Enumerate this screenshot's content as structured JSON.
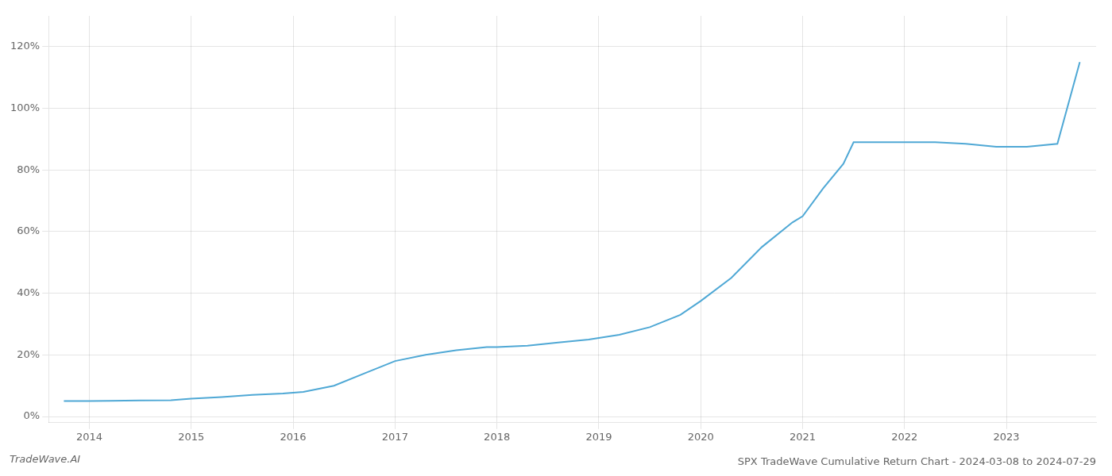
{
  "chart_data": {
    "type": "line",
    "title": "SPX TradeWave Cumulative Return Chart - 2024-03-08 to 2024-07-29",
    "annotations": [
      "TradeWave.AI"
    ],
    "color": "#4fa8d5",
    "grid": true,
    "x": [
      2013.75,
      2014.0,
      2014.2,
      2014.5,
      2014.8,
      2015.0,
      2015.3,
      2015.6,
      2015.9,
      2016.1,
      2016.4,
      2016.7,
      2017.0,
      2017.3,
      2017.6,
      2017.9,
      2018.0,
      2018.3,
      2018.6,
      2018.9,
      2019.0,
      2019.2,
      2019.5,
      2019.8,
      2020.0,
      2020.3,
      2020.6,
      2020.9,
      2021.0,
      2021.2,
      2021.4,
      2021.5,
      2021.8,
      2022.0,
      2022.3,
      2022.6,
      2022.9,
      2023.0,
      2023.2,
      2023.5,
      2023.72
    ],
    "values": [
      5.0,
      5.0,
      5.1,
      5.2,
      5.3,
      5.8,
      6.3,
      7.0,
      7.5,
      8.0,
      10.0,
      14.0,
      18.0,
      20.0,
      21.5,
      22.5,
      22.5,
      23.0,
      24.0,
      25.0,
      25.5,
      26.5,
      29.0,
      33.0,
      37.5,
      45.0,
      55.0,
      63.0,
      65.0,
      74.0,
      82.0,
      89.0,
      89.0,
      89.0,
      89.0,
      88.5,
      87.5,
      87.5,
      87.5,
      88.5,
      115.0
    ],
    "xlim": [
      2013.6,
      2023.88
    ],
    "xticks": [
      2014,
      2015,
      2016,
      2017,
      2018,
      2019,
      2020,
      2021,
      2022,
      2023
    ],
    "ylim": [
      -2,
      130
    ],
    "yticks": [
      {
        "value": 0,
        "label": "0%"
      },
      {
        "value": 20,
        "label": "20%"
      },
      {
        "value": 40,
        "label": "40%"
      },
      {
        "value": 60,
        "label": "60%"
      },
      {
        "value": 80,
        "label": "80%"
      },
      {
        "value": 100,
        "label": "100%"
      },
      {
        "value": 120,
        "label": "120%"
      }
    ]
  }
}
